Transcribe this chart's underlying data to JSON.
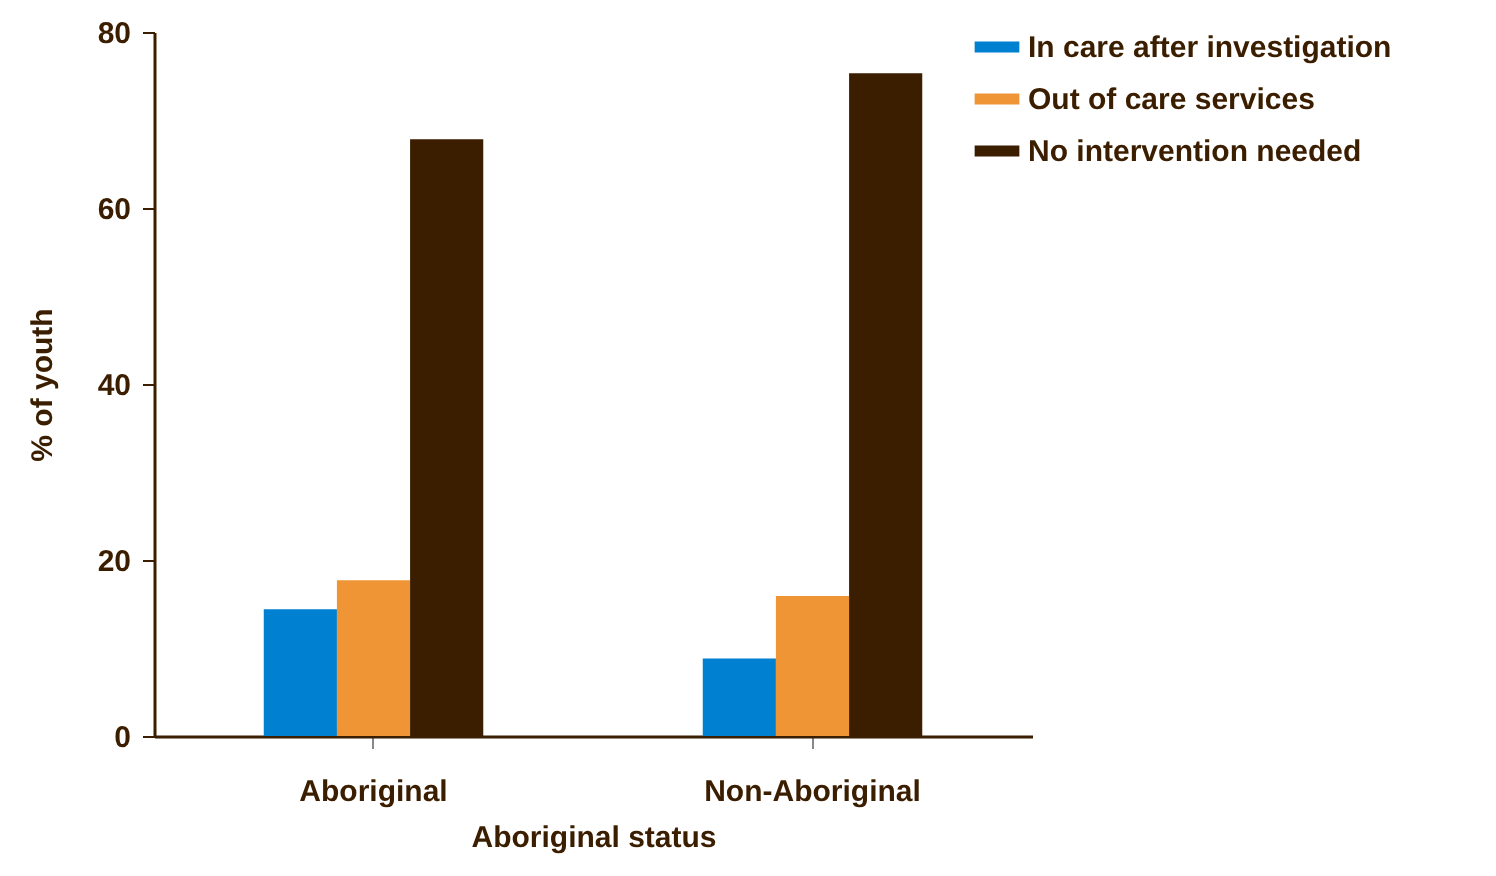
{
  "chart_data": {
    "type": "bar",
    "xlabel": "Aboriginal status",
    "ylabel": "% of  youth",
    "categories": [
      "Aboriginal",
      "Non-Aboriginal"
    ],
    "series": [
      {
        "name": "In care after investigation",
        "color": "#0080d0",
        "values": [
          14.4,
          8.8
        ]
      },
      {
        "name": "Out of care services",
        "color": "#f09535",
        "values": [
          17.7,
          15.9
        ]
      },
      {
        "name": "No intervention needed",
        "color": "#3b1e00",
        "values": [
          67.8,
          75.3
        ]
      }
    ],
    "ylim": [
      0,
      80
    ],
    "yticks": [
      0,
      20,
      40,
      60,
      80
    ],
    "legend": "top right"
  }
}
